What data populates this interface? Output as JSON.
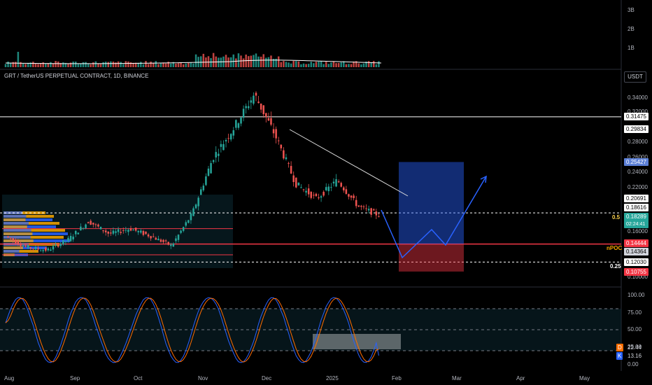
{
  "title": "GRT / TetherUS PERPETUAL CONTRACT, 1D, BINANCE",
  "currency": "USDT",
  "colors": {
    "up": "#26a69a",
    "down": "#ef5350",
    "stoch_k": "#2962ff",
    "stoch_d": "#ff6d00",
    "red_line": "#f23645",
    "white_line": "#ffffff",
    "nPOC": "#f7a600",
    "fib": "#ffd54f"
  },
  "volume_axis": [
    "3B",
    "2B",
    "1B"
  ],
  "price_axis": [
    "0.34000",
    "0.32000",
    "0.28000",
    "0.26000",
    "0.24000",
    "0.22000",
    "0.16000",
    "0.10000"
  ],
  "price_labels": [
    {
      "text": "0.31475",
      "style": "white"
    },
    {
      "text": "0.29834",
      "style": "white"
    },
    {
      "text": "0.25427",
      "style": "blue"
    },
    {
      "text": "0.20691",
      "style": "white"
    },
    {
      "text": "0.18616",
      "style": "white"
    },
    {
      "text": "0.18289",
      "time": "02:24:41",
      "style": "green"
    },
    {
      "text": "0.14444",
      "style": "red"
    },
    {
      "text": "0.14364",
      "style": "grey"
    },
    {
      "text": "0.12030",
      "style": "white"
    },
    {
      "text": "0.10755",
      "style": "red"
    }
  ],
  "level_labels": {
    "fib_05": "0.5",
    "fib_025": "0.25",
    "npoc": "nPOC"
  },
  "stoch_axis": [
    "100.00",
    "75.00",
    "50.00",
    "25.00",
    "0.00"
  ],
  "stoch_labels": [
    {
      "key": "D",
      "value": "22.44",
      "color": "#ff6d00"
    },
    {
      "key": "K",
      "value": "13.16",
      "color": "#2962ff"
    }
  ],
  "time_axis": [
    "Aug",
    "Sep",
    "Oct",
    "Nov",
    "Dec",
    "2025",
    "Feb",
    "Mar",
    "Apr",
    "May"
  ],
  "chart_data": {
    "type": "candlestick",
    "symbol": "GRT / TetherUS PERPETUAL CONTRACT",
    "interval": "1D",
    "exchange": "BINANCE",
    "price_path": [
      {
        "x": "Aug",
        "y": 0.155
      },
      {
        "x": "Aug mid",
        "y": 0.14
      },
      {
        "x": "Sep",
        "y": 0.136
      },
      {
        "x": "Sep mid",
        "y": 0.15
      },
      {
        "x": "Sep end",
        "y": 0.175
      },
      {
        "x": "Oct",
        "y": 0.158
      },
      {
        "x": "Oct mid",
        "y": 0.165
      },
      {
        "x": "Oct end",
        "y": 0.155
      },
      {
        "x": "Nov",
        "y": 0.142
      },
      {
        "x": "Nov mid",
        "y": 0.185
      },
      {
        "x": "Nov end",
        "y": 0.26
      },
      {
        "x": "Dec",
        "y": 0.3
      },
      {
        "x": "Dec peak",
        "y": 0.345
      },
      {
        "x": "Dec mid",
        "y": 0.29
      },
      {
        "x": "Dec end",
        "y": 0.225
      },
      {
        "x": "2025",
        "y": 0.205
      },
      {
        "x": "Jan mid",
        "y": 0.23
      },
      {
        "x": "Jan end",
        "y": 0.195
      },
      {
        "x": "Jan last",
        "y": 0.183
      }
    ],
    "horizontal_levels": [
      {
        "price": 0.31475,
        "style": "white-solid"
      },
      {
        "price": 0.18616,
        "style": "white-dashed",
        "label": "0.5"
      },
      {
        "price": 0.14444,
        "style": "red-solid",
        "label": "nPOC"
      },
      {
        "price": 0.1203,
        "style": "white-dashed",
        "label": "0.25"
      }
    ],
    "position": {
      "entry": 0.14444,
      "target": 0.25427,
      "stop": 0.10755
    },
    "stochastic": {
      "D": 22.44,
      "K": 13.16,
      "bands": [
        80,
        50,
        20
      ]
    },
    "ylim": [
      0.095,
      0.355
    ]
  }
}
